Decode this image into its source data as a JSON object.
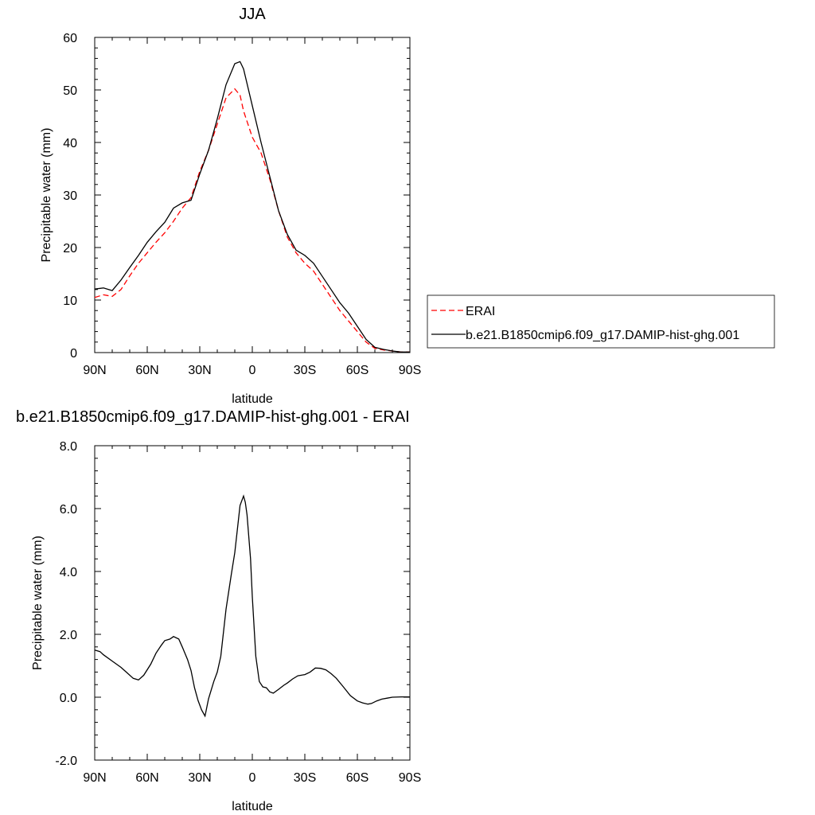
{
  "chart_data": [
    {
      "type": "line",
      "title": "JJA",
      "xlabel": "latitude",
      "ylabel": "Precipitable water (mm)",
      "xlim": [
        90,
        -90
      ],
      "ylim": [
        0,
        60
      ],
      "x_tick_values": [
        90,
        60,
        30,
        0,
        -30,
        -60,
        -90
      ],
      "x_tick_labels": [
        "90N",
        "60N",
        "30N",
        "0",
        "30S",
        "60S",
        "90S"
      ],
      "y_tick_values": [
        0,
        10,
        20,
        30,
        40,
        50,
        60
      ],
      "y_tick_labels": [
        "0",
        "10",
        "20",
        "30",
        "40",
        "50",
        "60"
      ],
      "legend_position": "right",
      "series": [
        {
          "name": "ERAI",
          "color": "#ff0000",
          "dash": "dashed",
          "x": [
            90,
            85,
            80,
            75,
            70,
            65,
            60,
            55,
            50,
            45,
            40,
            35,
            30,
            25,
            20,
            15,
            10,
            7,
            5,
            0,
            -5,
            -10,
            -15,
            -20,
            -25,
            -30,
            -35,
            -40,
            -45,
            -50,
            -55,
            -60,
            -65,
            -70,
            -75,
            -80,
            -85,
            -90
          ],
          "y": [
            10.5,
            11,
            10.7,
            12,
            14.6,
            17,
            19,
            21,
            22.8,
            25,
            27.5,
            29.5,
            34.5,
            38.5,
            43.5,
            48.5,
            50.2,
            49,
            46,
            41,
            38,
            33,
            27,
            22,
            19,
            17,
            15.5,
            13,
            10.5,
            8,
            6,
            4,
            2,
            0.8,
            0.5,
            0.3,
            0.1,
            0.1
          ]
        },
        {
          "name": "b.e21.B1850cmip6.f09_g17.DAMIP-hist-ghg.001",
          "color": "#000000",
          "dash": "solid",
          "x": [
            90,
            85,
            80,
            75,
            70,
            65,
            60,
            55,
            50,
            45,
            40,
            35,
            30,
            25,
            20,
            15,
            10,
            7,
            5,
            0,
            -5,
            -10,
            -15,
            -20,
            -25,
            -30,
            -35,
            -40,
            -45,
            -50,
            -55,
            -60,
            -65,
            -70,
            -75,
            -80,
            -85,
            -90
          ],
          "y": [
            12.1,
            12.3,
            11.8,
            13.8,
            16.2,
            18.5,
            21,
            23,
            24.8,
            27.5,
            28.5,
            29,
            34,
            38.5,
            44.5,
            51,
            55,
            55.4,
            54,
            47,
            40,
            33.5,
            27,
            22.5,
            19.5,
            18.5,
            17,
            14.5,
            12,
            9.5,
            7.5,
            5,
            2.5,
            1,
            0.6,
            0.3,
            0.1,
            0.1
          ]
        }
      ]
    },
    {
      "type": "line",
      "title": "b.e21.B1850cmip6.f09_g17.DAMIP-hist-ghg.001 - ERAI",
      "xlabel": "latitude",
      "ylabel": "Precipitable water (mm)",
      "xlim": [
        90,
        -90
      ],
      "ylim": [
        -2,
        8
      ],
      "x_tick_values": [
        90,
        60,
        30,
        0,
        -30,
        -60,
        -90
      ],
      "x_tick_labels": [
        "90N",
        "60N",
        "30N",
        "0",
        "30S",
        "60S",
        "90S"
      ],
      "y_tick_values": [
        -2,
        0,
        2,
        4,
        6,
        8
      ],
      "y_tick_labels": [
        "-2.0",
        "0.0",
        "2.0",
        "4.0",
        "6.0",
        "8.0"
      ],
      "series": [
        {
          "color": "#000000",
          "dash": "solid",
          "x": [
            90,
            87,
            85,
            80,
            75,
            72,
            68,
            65,
            62,
            58,
            55,
            52,
            50,
            47,
            45,
            42,
            40,
            37,
            35,
            33,
            31,
            29,
            27,
            25,
            22,
            20,
            18,
            15,
            12,
            10,
            7,
            5,
            4,
            3,
            1,
            0,
            -2,
            -4,
            -6,
            -8,
            -10,
            -12,
            -15,
            -18,
            -20,
            -23,
            -26,
            -30,
            -33,
            -36,
            -39,
            -42,
            -45,
            -48,
            -52,
            -56,
            -60,
            -63,
            -66,
            -68,
            -71,
            -74,
            -77,
            -80,
            -85,
            -90
          ],
          "y": [
            1.5,
            1.45,
            1.35,
            1.15,
            0.95,
            0.8,
            0.6,
            0.55,
            0.7,
            1.05,
            1.4,
            1.65,
            1.8,
            1.85,
            1.93,
            1.85,
            1.6,
            1.2,
            0.85,
            0.3,
            -0.1,
            -0.4,
            -0.6,
            -0.05,
            0.5,
            0.8,
            1.3,
            2.8,
            3.9,
            4.6,
            6.1,
            6.4,
            6.2,
            5.8,
            4.4,
            3.2,
            1.3,
            0.5,
            0.33,
            0.3,
            0.17,
            0.13,
            0.25,
            0.38,
            0.45,
            0.58,
            0.68,
            0.72,
            0.8,
            0.93,
            0.92,
            0.87,
            0.75,
            0.6,
            0.33,
            0.05,
            -0.12,
            -0.18,
            -0.22,
            -0.2,
            -0.12,
            -0.06,
            -0.03,
            0,
            0.01,
            0.01
          ]
        }
      ]
    }
  ]
}
